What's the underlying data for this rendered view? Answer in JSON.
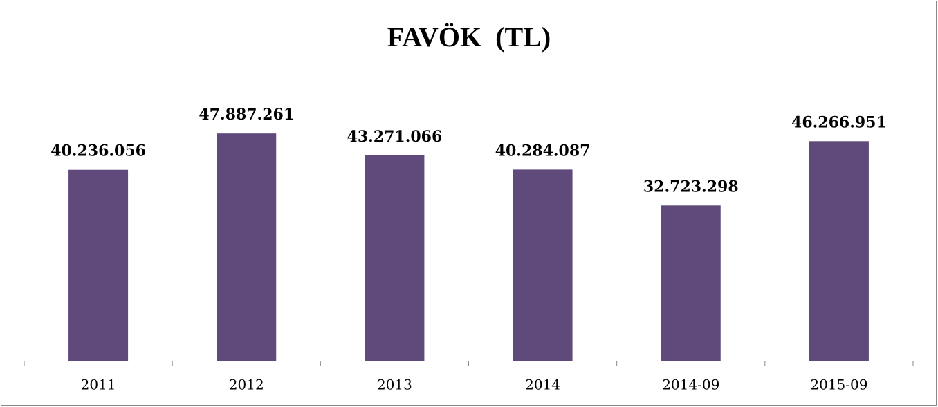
{
  "chart_data": {
    "type": "bar",
    "title": "FAVÖK  (TL)",
    "categories": [
      "2011",
      "2012",
      "2013",
      "2014",
      "2014-09",
      "2015-09"
    ],
    "values": [
      40236056,
      47887261,
      43271066,
      40284087,
      32723298,
      46266951
    ],
    "value_labels": [
      "40.236.056",
      "47.887.261",
      "43.271.066",
      "40.284.087",
      "32.723.298",
      "46.266.951"
    ],
    "color": "#5f4a7b",
    "ylim": [
      0,
      60000000
    ]
  }
}
